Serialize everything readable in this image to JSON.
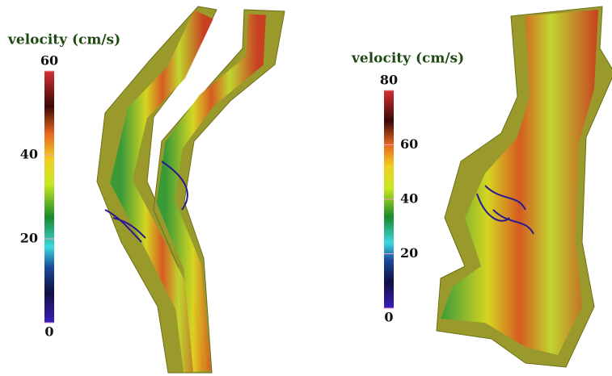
{
  "panels": [
    {
      "colorbar": {
        "title": "velocity (cm/s)",
        "range": [
          0,
          60
        ],
        "ticks": [
          0,
          20,
          40,
          60
        ]
      }
    },
    {
      "colorbar": {
        "title": "velocity (cm/s)",
        "range": [
          0,
          80
        ],
        "ticks": [
          0,
          20,
          40,
          60,
          80
        ]
      }
    }
  ]
}
